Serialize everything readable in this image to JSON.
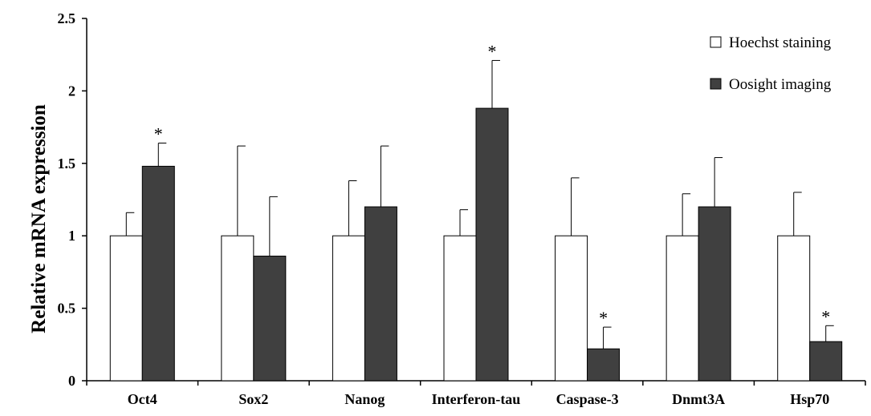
{
  "chart_data": {
    "type": "bar",
    "ylabel": "Relative mRNA expression",
    "xlabel": "",
    "ylim": [
      0,
      2.5
    ],
    "yticks": [
      0,
      0.5,
      1,
      1.5,
      2,
      2.5
    ],
    "ytick_labels": [
      "0",
      "0.5",
      "1",
      "1.5",
      "2",
      "2.5"
    ],
    "categories": [
      "Oct4",
      "Sox2",
      "Nanog",
      "Interferon-tau",
      "Caspase-3",
      "Dnmt3A",
      "Hsp70"
    ],
    "series": [
      {
        "name": "Hoechst staining",
        "color": "#ffffff",
        "values": [
          1,
          1,
          1,
          1,
          1,
          1,
          1
        ],
        "errors": [
          0.16,
          0.62,
          0.38,
          0.18,
          0.4,
          0.29,
          0.3
        ]
      },
      {
        "name": "Oosight imaging",
        "color": "#404040",
        "values": [
          1.48,
          0.86,
          1.2,
          1.88,
          0.22,
          1.2,
          0.27
        ],
        "errors": [
          0.16,
          0.41,
          0.42,
          0.33,
          0.15,
          0.34,
          0.11
        ]
      }
    ],
    "significance_marker": "*",
    "significant": [
      {
        "category": "Oct4",
        "series": "Oosight imaging"
      },
      {
        "category": "Interferon-tau",
        "series": "Oosight imaging"
      },
      {
        "category": "Caspase-3",
        "series": "Oosight imaging"
      },
      {
        "category": "Hsp70",
        "series": "Oosight imaging"
      }
    ],
    "legend_position": "top-right",
    "grid": false
  }
}
